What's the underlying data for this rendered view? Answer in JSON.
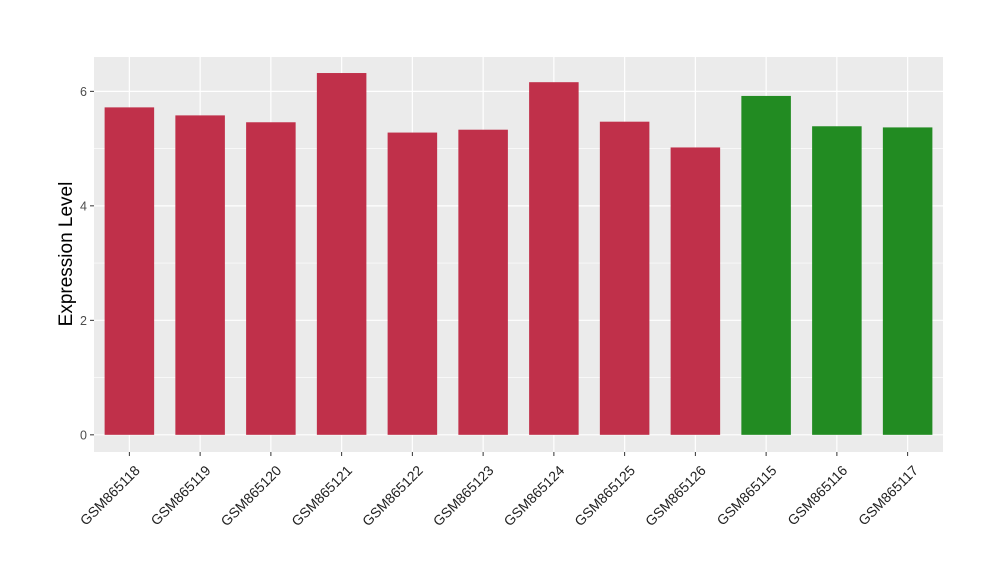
{
  "chart_data": {
    "type": "bar",
    "title": "",
    "xlabel": "",
    "ylabel": "Expression Level",
    "ylim": [
      -0.3,
      6.6
    ],
    "yticks": [
      0,
      2,
      4,
      6
    ],
    "grid": true,
    "background": "#EBEBEB",
    "categories": [
      "GSM865118",
      "GSM865119",
      "GSM865120",
      "GSM865121",
      "GSM865122",
      "GSM865123",
      "GSM865124",
      "GSM865125",
      "GSM865126",
      "GSM865115",
      "GSM865116",
      "GSM865117"
    ],
    "values": [
      5.72,
      5.58,
      5.46,
      6.32,
      5.28,
      5.33,
      6.16,
      5.47,
      5.02,
      5.92,
      5.39,
      5.37
    ],
    "colors": [
      "#C0304A",
      "#C0304A",
      "#C0304A",
      "#C0304A",
      "#C0304A",
      "#C0304A",
      "#C0304A",
      "#C0304A",
      "#C0304A",
      "#228B22",
      "#228B22",
      "#228B22"
    ]
  }
}
